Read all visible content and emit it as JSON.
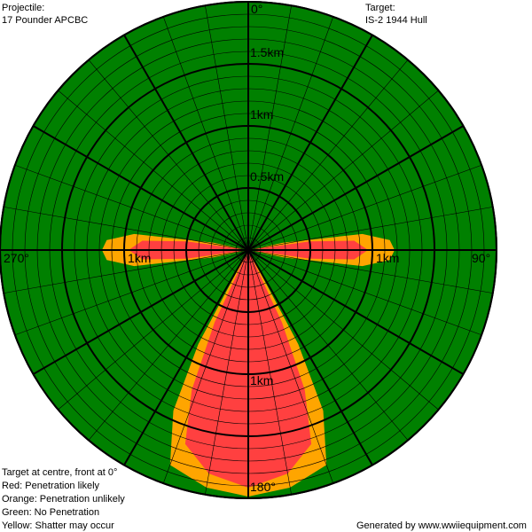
{
  "projectile": {
    "label": "Projectile:",
    "name": "17 Pounder APCBC"
  },
  "target": {
    "label": "Target:",
    "name": "IS-2 1944 Hull"
  },
  "bearings": {
    "top": "0°",
    "right": "90°",
    "bottom": "180°",
    "left": "270°"
  },
  "ranges": {
    "r05": "0.5km",
    "r1": "1km",
    "r15": "1.5km",
    "left": "1km",
    "right": "1km",
    "bottom": "1km"
  },
  "legend": [
    "Target at centre, front at 0°",
    "Red: Penetration likely",
    "Orange: Penetration unlikely",
    "Green: No Penetration",
    "Yellow: Shatter may occur"
  ],
  "credit": "Generated by www.wwiiequipment.com"
}
